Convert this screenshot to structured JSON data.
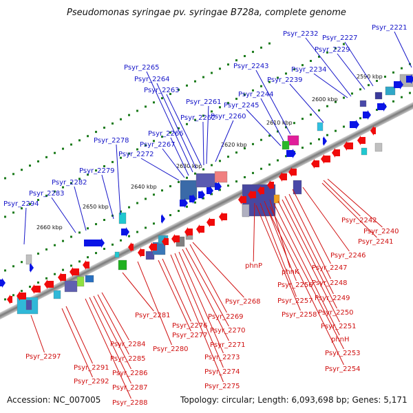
{
  "title": "Pseudomonas syringae pv. syringae B728a, complete genome",
  "accession": "Accession: NC_007005",
  "topology": "Topology: circular; Length: 6,093,698 bp; Genes: 5,171",
  "kbp_ticks": [
    "2590 kbp",
    "2600 kbp",
    "2610 kbp",
    "2620 kbp",
    "2630 kbp",
    "2640 kbp",
    "2650 kbp",
    "2660 kbp"
  ],
  "upper_labels": [
    "Psyr_2221",
    "Psyr_2227",
    "Psyr_2229",
    "Psyr_2232",
    "Psyr_2234",
    "Psyr_2239",
    "Psyr_2243",
    "Psyr_2244",
    "Psyr_2245",
    "Psyr_2260",
    "Psyr_2261",
    "Psyr_2262",
    "Psyr_2263",
    "Psyr_2264",
    "Psyr_2265",
    "Psyr_2266",
    "Psyr_2267",
    "Psyr_2272",
    "Psyr_2278",
    "Psyr_2279",
    "Psyr_2282",
    "Psyr_2283",
    "Psyr_2294"
  ],
  "lower_labels": [
    "Psyr_2242",
    "Psyr_2240",
    "Psyr_2241",
    "Psyr_2246",
    "phnP",
    "Psyr_2247",
    "phnK",
    "Psyr_2248",
    "Psyr_2256",
    "Psyr_2249",
    "Psyr_2257",
    "Psyr_2250",
    "Psyr_2258",
    "Psyr_2251",
    "phnH",
    "Psyr_2253",
    "Psyr_2254",
    "Psyr_2268",
    "Psyr_2269",
    "Psyr_2270",
    "Psyr_2271",
    "Psyr_2273",
    "Psyr_2274",
    "Psyr_2275",
    "Psyr_2276",
    "Psyr_2277",
    "Psyr_2280",
    "Psyr_2281",
    "Psyr_2284",
    "Psyr_2285",
    "Psyr_2286",
    "Psyr_2287",
    "Psyr_2288",
    "Psyr_2291",
    "Psyr_2292",
    "Psyr_2297"
  ],
  "colors": {
    "forward": "#0a14e6",
    "reverse": "#f00a0a",
    "backbone": "#8c8c8c",
    "tick": "#1a7a1a",
    "label_forward": "#1414c8",
    "label_reverse": "#d01010"
  }
}
